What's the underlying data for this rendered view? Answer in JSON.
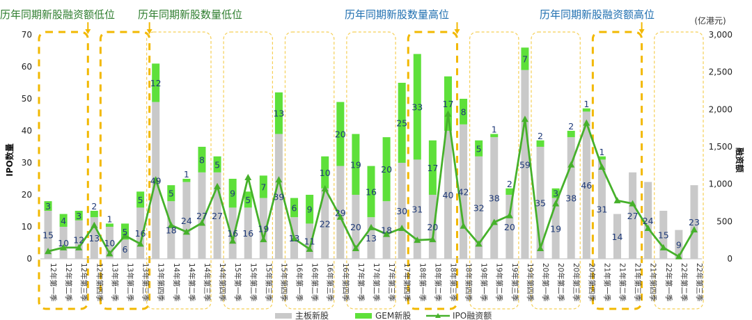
{
  "chart_data": {
    "type": "bar",
    "ylabel_left": "IPO数量",
    "ylabel_right": "融资额",
    "unit_right": "(亿港元)",
    "ylim_left": [
      0,
      70
    ],
    "ylim_right": [
      0,
      3000
    ],
    "yticks_left": [
      0,
      10,
      20,
      30,
      40,
      50,
      60,
      70
    ],
    "yticks_right": [
      "0",
      "500",
      "1,000",
      "1,500",
      "2,000",
      "2,500",
      "3,000"
    ],
    "categories": [
      "12年第一季",
      "12年第二季",
      "12年第三季",
      "12年第四季",
      "13年第一季",
      "13年第二季",
      "13年第三季",
      "13年第四季",
      "14年第一季",
      "14年第二季",
      "14年第三季",
      "14年第四季",
      "15年第一季",
      "15年第二季",
      "15年第三季",
      "15年第四季",
      "16年第一季",
      "16年第二季",
      "16年第三季",
      "16年第四季",
      "17年第一季",
      "17年第二季",
      "17年第三季",
      "17年第四季",
      "18年第一季",
      "18年第二季",
      "18年第三季",
      "18年第四季",
      "19年第一季",
      "19年第二季",
      "19年第三季",
      "19年第四季",
      "20年第一季",
      "20年第二季",
      "20年第三季",
      "20年第四季",
      "21年第一季",
      "21年第二季",
      "21年第三季",
      "21年第四季",
      "22年第一季",
      "22年第二季",
      "22年第三季"
    ],
    "series": [
      {
        "name": "主板新股",
        "color": "#c9c9c9",
        "values": [
          15,
          10,
          12,
          13,
          10,
          6,
          16,
          49,
          18,
          24,
          27,
          27,
          16,
          16,
          19,
          39,
          13,
          11,
          22,
          29,
          20,
          13,
          18,
          30,
          31,
          20,
          40,
          42,
          32,
          38,
          20,
          59,
          35,
          19,
          38,
          46,
          31,
          14,
          27,
          24,
          15,
          9,
          23
        ]
      },
      {
        "name": "GEM新股",
        "color": "#5ee03a",
        "values": [
          3,
          4,
          3,
          2,
          1,
          5,
          5,
          12,
          5,
          1,
          8,
          5,
          9,
          5,
          7,
          13,
          6,
          9,
          10,
          20,
          19,
          16,
          20,
          25,
          33,
          17,
          17,
          8,
          5,
          1,
          2,
          7,
          2,
          3,
          2,
          1,
          1,
          0,
          0,
          0,
          0,
          0,
          0
        ]
      },
      {
        "name": "IPO融资额",
        "color": "#46b12b",
        "values": [
          100,
          150,
          150,
          450,
          70,
          310,
          200,
          1060,
          450,
          360,
          480,
          970,
          240,
          1090,
          260,
          1060,
          270,
          130,
          940,
          560,
          140,
          420,
          330,
          410,
          250,
          260,
          1940,
          440,
          200,
          490,
          580,
          1870,
          140,
          740,
          1260,
          1820,
          1230,
          780,
          740,
          410,
          150,
          30,
          390
        ]
      }
    ],
    "annotations": [
      {
        "text": "历年同期新股融资额低位",
        "color": "#2e7d2e"
      },
      {
        "text": "历年同期新股数量低位",
        "color": "#2e7d2e"
      },
      {
        "text": "历年同期新股数量高位",
        "color": "#1f6fb0"
      },
      {
        "text": "历年同期新股融资额高位",
        "color": "#1f6fb0"
      }
    ],
    "legend": [
      "主板新股",
      "GEM新股",
      "IPO融资额"
    ],
    "legend_position": "bottom"
  }
}
